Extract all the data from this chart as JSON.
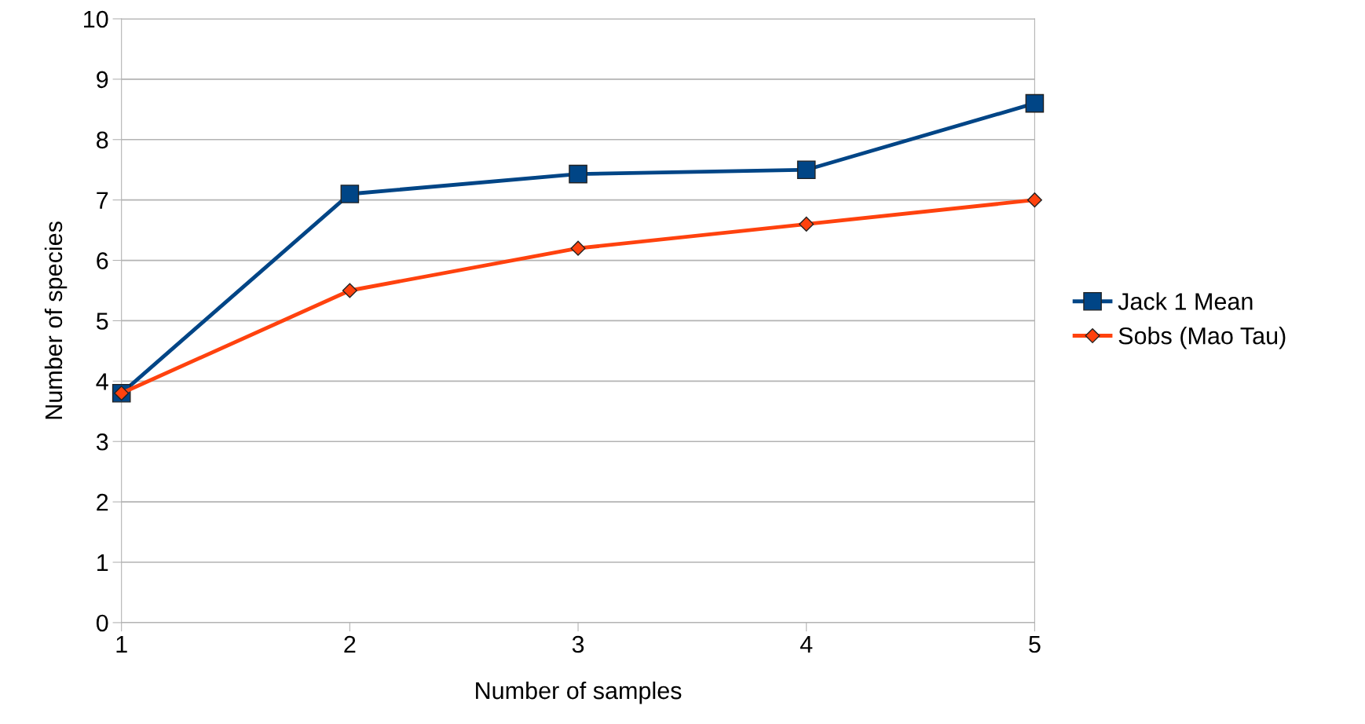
{
  "chart_data": {
    "type": "line",
    "xlabel": "Number of samples",
    "ylabel": "Number of species",
    "x": [
      1,
      2,
      3,
      4,
      5
    ],
    "series": [
      {
        "name": "Jack 1 Mean",
        "color": "#004586",
        "marker": "square",
        "values": [
          3.8,
          7.1,
          7.43,
          7.5,
          8.6
        ]
      },
      {
        "name": "Sobs (Mao Tau)",
        "color": "#ff420e",
        "marker": "diamond",
        "values": [
          3.8,
          5.5,
          6.2,
          6.6,
          7.0
        ]
      }
    ],
    "xlim": [
      1,
      5
    ],
    "xticks": [
      1,
      2,
      3,
      4,
      5
    ],
    "ylim": [
      0,
      10
    ],
    "yticks": [
      0,
      1,
      2,
      3,
      4,
      5,
      6,
      7,
      8,
      9,
      10
    ],
    "grid": "y",
    "legend": "right",
    "line_style": "solid"
  }
}
